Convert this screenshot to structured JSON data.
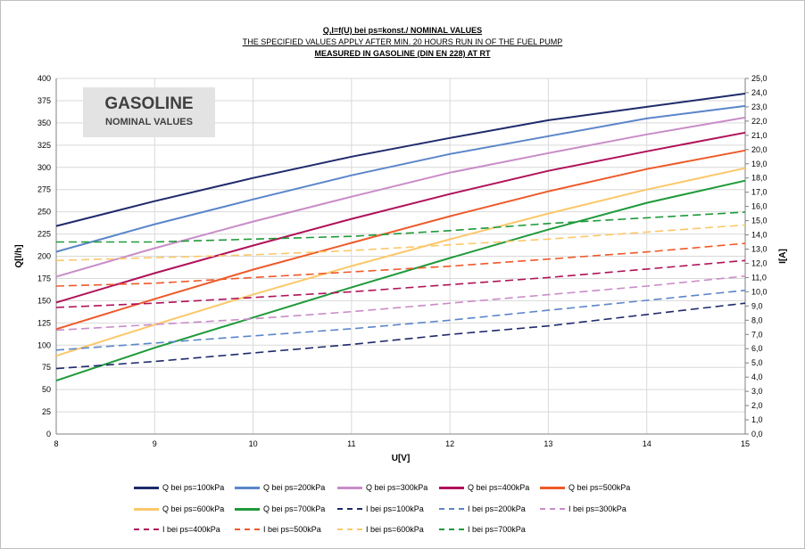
{
  "header": {
    "line1": "Q,I=f(U) bei ps=konst./ NOMINAL VALUES",
    "line2": "THE SPECIFIED VALUES APPLY AFTER MIN. 20 HOURS RUN IN OF THE FUEL PUMP",
    "line3": "MEASURED IN GASOLINE (DIN EN 228) AT RT"
  },
  "badge": {
    "title": "GASOLINE",
    "subtitle": "NOMINAL VALUES"
  },
  "chart_data": {
    "type": "line",
    "xlabel": "U[V]",
    "ylabel": "Q[l/h]",
    "y2label": "I[A]",
    "xlim": [
      8,
      15
    ],
    "ylim": [
      0,
      400
    ],
    "y2lim": [
      0,
      25
    ],
    "grid": true,
    "legend_position": "bottom",
    "x_ticks": [
      "8",
      "9",
      "10",
      "11",
      "12",
      "13",
      "14",
      "15"
    ],
    "y_ticks": [
      "0",
      "25",
      "50",
      "75",
      "100",
      "125",
      "150",
      "175",
      "200",
      "225",
      "250",
      "275",
      "300",
      "325",
      "350",
      "375",
      "400"
    ],
    "y2_ticks": [
      "0,0",
      "1,0",
      "2,0",
      "3,0",
      "4,0",
      "5,0",
      "6,0",
      "7,0",
      "8,0",
      "9,0",
      "10,0",
      "11,0",
      "12,0",
      "13,0",
      "14,0",
      "15,0",
      "16,0",
      "17,0",
      "18,0",
      "19,0",
      "20,0",
      "21,0",
      "22,0",
      "23,0",
      "24,0",
      "25,0"
    ],
    "x": [
      8,
      9,
      10,
      11,
      12,
      13,
      14,
      15
    ],
    "series": [
      {
        "name": "Q  bei ps=100kPa",
        "axis": "left",
        "dash": false,
        "color": "#1f2a6b",
        "values": [
          234,
          262,
          288,
          312,
          333,
          353,
          368,
          383
        ]
      },
      {
        "name": "Q  bei ps=200kPa",
        "axis": "left",
        "dash": false,
        "color": "#5b86c9",
        "values": [
          205,
          236,
          264,
          291,
          315,
          335,
          355,
          369
        ]
      },
      {
        "name": "Q  bei ps=300kPa",
        "axis": "left",
        "dash": false,
        "color": "#c98cc8",
        "values": [
          177,
          209,
          239,
          267,
          294,
          316,
          337,
          356
        ]
      },
      {
        "name": "Q  bei ps=400kPa",
        "axis": "left",
        "dash": false,
        "color": "#b0125a",
        "values": [
          148,
          181,
          212,
          242,
          270,
          296,
          318,
          339
        ]
      },
      {
        "name": "Q  bei ps=500kPa",
        "axis": "left",
        "dash": false,
        "color": "#ee5a2a",
        "values": [
          118,
          152,
          185,
          215,
          245,
          273,
          298,
          319
        ]
      },
      {
        "name": "Q  bei ps=600kPa",
        "axis": "left",
        "dash": false,
        "color": "#fbc86a",
        "values": [
          88,
          123,
          157,
          189,
          219,
          248,
          275,
          299
        ]
      },
      {
        "name": "Q  bei ps=700kPa",
        "axis": "left",
        "dash": false,
        "color": "#1f9a3a",
        "values": [
          60,
          97,
          131,
          165,
          198,
          230,
          260,
          285
        ]
      },
      {
        "name": "I  bei ps=100kPa",
        "axis": "right",
        "dash": true,
        "color": "#1f2a6b",
        "values": [
          4.6,
          5.1,
          5.7,
          6.3,
          7.0,
          7.6,
          8.4,
          9.2
        ]
      },
      {
        "name": "I  bei ps=200kPa",
        "axis": "right",
        "dash": true,
        "color": "#5b86c9",
        "values": [
          5.9,
          6.4,
          6.9,
          7.4,
          8.0,
          8.7,
          9.4,
          10.1
        ]
      },
      {
        "name": "I  bei ps=300kPa",
        "axis": "right",
        "dash": true,
        "color": "#c98cc8",
        "values": [
          7.3,
          7.7,
          8.1,
          8.6,
          9.2,
          9.8,
          10.4,
          11.1
        ]
      },
      {
        "name": "I  bei ps=400kPa",
        "axis": "right",
        "dash": true,
        "color": "#b0125a",
        "values": [
          8.9,
          9.2,
          9.6,
          10.0,
          10.5,
          11.0,
          11.6,
          12.2
        ]
      },
      {
        "name": "I  bei ps=500kPa",
        "axis": "right",
        "dash": true,
        "color": "#ee5a2a",
        "values": [
          10.4,
          10.6,
          11.0,
          11.4,
          11.8,
          12.3,
          12.8,
          13.4
        ]
      },
      {
        "name": "I  bei ps=600kPa",
        "axis": "right",
        "dash": true,
        "color": "#fbc86a",
        "values": [
          12.2,
          12.4,
          12.6,
          12.9,
          13.3,
          13.7,
          14.2,
          14.7
        ]
      },
      {
        "name": "I  bei ps=700kPa",
        "axis": "right",
        "dash": true,
        "color": "#1f9a3a",
        "values": [
          13.5,
          13.5,
          13.7,
          13.9,
          14.3,
          14.8,
          15.2,
          15.6
        ]
      }
    ]
  }
}
